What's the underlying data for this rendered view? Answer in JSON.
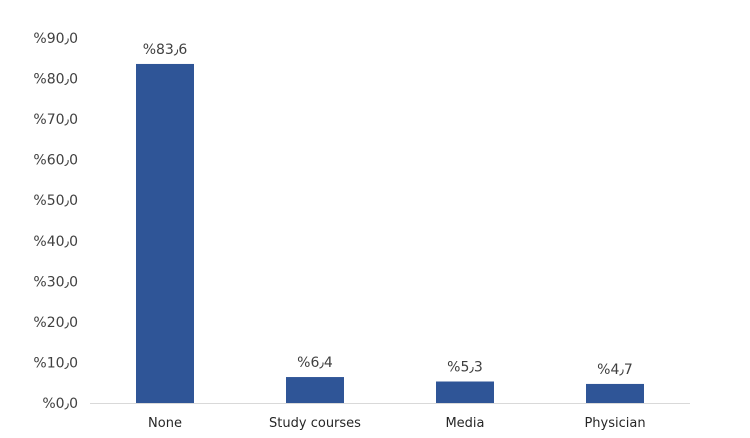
{
  "chart_data": {
    "type": "bar",
    "title": "",
    "xlabel": "",
    "ylabel": "",
    "categories": [
      "None",
      "Study courses",
      "Media",
      "Physician"
    ],
    "values": [
      83.6,
      6.4,
      5.3,
      4.7
    ],
    "data_labels": [
      "%83٫6",
      "%6٫4",
      "%5٫3",
      "%4٫7"
    ],
    "ylim": [
      0,
      90
    ],
    "yticks": [
      0,
      10,
      20,
      30,
      40,
      50,
      60,
      70,
      80,
      90
    ],
    "ytick_labels": [
      "%0٫0",
      "%10٫0",
      "%20٫0",
      "%30٫0",
      "%40٫0",
      "%50٫0",
      "%60٫0",
      "%70٫0",
      "%80٫0",
      "%90٫0"
    ],
    "grid": false,
    "legend": "none",
    "bar_color": "#2F5597",
    "axis_color": "#d9d9d9"
  }
}
